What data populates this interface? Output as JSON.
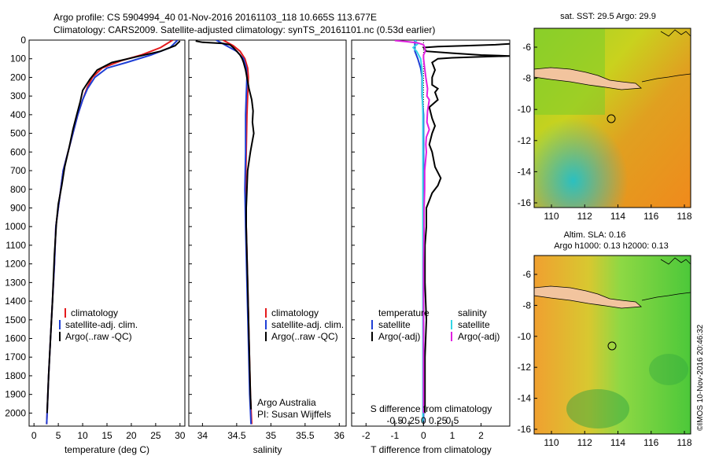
{
  "title_line1": "Argo profile: CS 5904994_40 01-Nov-2016 20161103_118 10.665S 113.677E",
  "title_line2": "Climatology: CARS2009. Satellite-adjusted climatology: synTS_20161101.nc (0.53d earlier)",
  "colors": {
    "climatology": "#e41a1c",
    "satellite": "#1f3fd6",
    "argo": "#000000",
    "sat_salinity": "#33d6e6",
    "argo_salinity": "#e020e0",
    "land": "#f2c49e"
  },
  "chart_data": [
    {
      "id": "temperature",
      "type": "line",
      "xlabel": "temperature (deg C)",
      "ylabel": "",
      "xlim": [
        -1,
        31
      ],
      "ylim": [
        2070,
        0
      ],
      "xticks": [
        0,
        5,
        10,
        15,
        20,
        25,
        30
      ],
      "xtick_labels": [
        "0",
        "5",
        "10",
        "15",
        "20",
        "25",
        "30"
      ],
      "yticks": [
        0,
        100,
        200,
        300,
        400,
        500,
        600,
        700,
        800,
        900,
        1000,
        1100,
        1200,
        1300,
        1400,
        1500,
        1600,
        1700,
        1800,
        1900,
        2000
      ],
      "ytick_labels": [
        "0",
        "100",
        "200",
        "300",
        "400",
        "500",
        "600",
        "700",
        "800",
        "900",
        "1000",
        "1100",
        "1200",
        "1300",
        "1400",
        "1500",
        "1600",
        "1700",
        "1800",
        "1900",
        "2000"
      ],
      "legend": [
        "climatology",
        "satellite-adj. clim.",
        "Argo(..raw -QC)"
      ],
      "series": [
        {
          "name": "climatology",
          "color": "#e41a1c",
          "points": [
            [
              28.5,
              0
            ],
            [
              26,
              40
            ],
            [
              22,
              80
            ],
            [
              18,
              110
            ],
            [
              14,
              150
            ],
            [
              12,
              200
            ],
            [
              11,
              250
            ],
            [
              10,
              320
            ],
            [
              9,
              400
            ],
            [
              8,
              500
            ],
            [
              7,
              600
            ],
            [
              6,
              700
            ],
            [
              5.5,
              800
            ],
            [
              5,
              900
            ],
            [
              4.5,
              1000
            ],
            [
              4.2,
              1200
            ],
            [
              3.8,
              1400
            ],
            [
              3.4,
              1600
            ],
            [
              3,
              1800
            ],
            [
              2.7,
              2000
            ],
            [
              2.6,
              2060
            ]
          ]
        },
        {
          "name": "satellite-adj. clim.",
          "color": "#1f3fd6",
          "points": [
            [
              29.5,
              0
            ],
            [
              28,
              40
            ],
            [
              24,
              80
            ],
            [
              19,
              120
            ],
            [
              15,
              150
            ],
            [
              12.5,
              200
            ],
            [
              11,
              260
            ],
            [
              10,
              320
            ],
            [
              9,
              400
            ],
            [
              8,
              500
            ],
            [
              7,
              600
            ],
            [
              6,
              700
            ],
            [
              5.5,
              800
            ],
            [
              5,
              900
            ],
            [
              4.5,
              1000
            ],
            [
              4.2,
              1200
            ],
            [
              3.8,
              1400
            ],
            [
              3.4,
              1600
            ],
            [
              3,
              1800
            ],
            [
              2.7,
              2000
            ],
            [
              2.6,
              2060
            ]
          ]
        },
        {
          "name": "Argo(..raw -QC)",
          "color": "#000000",
          "points": [
            [
              30,
              5
            ],
            [
              29,
              30
            ],
            [
              26,
              60
            ],
            [
              21,
              90
            ],
            [
              16,
              120
            ],
            [
              13,
              160
            ],
            [
              11.5,
              210
            ],
            [
              10,
              270
            ],
            [
              9.5,
              330
            ],
            [
              8.8,
              400
            ],
            [
              8,
              480
            ],
            [
              7.2,
              580
            ],
            [
              6.3,
              680
            ],
            [
              5.7,
              780
            ],
            [
              5,
              880
            ],
            [
              4.6,
              980
            ],
            [
              4.2,
              1150
            ],
            [
              3.8,
              1400
            ],
            [
              3.4,
              1600
            ],
            [
              3,
              1800
            ],
            [
              2.7,
              2000
            ]
          ]
        }
      ]
    },
    {
      "id": "salinity",
      "type": "line",
      "xlabel": "salinity",
      "xlim": [
        33.8,
        36.1
      ],
      "ylim": [
        2070,
        0
      ],
      "xticks": [
        34,
        34.5,
        35,
        35.5,
        36
      ],
      "xtick_labels": [
        "34",
        "34.5",
        "35",
        "35.5",
        "36"
      ],
      "legend": [
        "climatology",
        "satellite-adj. clim.",
        "Argo(..raw -QC)"
      ],
      "annotations": [
        "Argo Australia",
        "PI: Susan Wijffels"
      ],
      "series": [
        {
          "name": "climatology",
          "color": "#e41a1c",
          "points": [
            [
              34.3,
              0
            ],
            [
              34.45,
              30
            ],
            [
              34.55,
              60
            ],
            [
              34.62,
              100
            ],
            [
              34.66,
              150
            ],
            [
              34.67,
              200
            ],
            [
              34.66,
              300
            ],
            [
              34.65,
              400
            ],
            [
              34.64,
              600
            ],
            [
              34.63,
              800
            ],
            [
              34.64,
              1000
            ],
            [
              34.66,
              1300
            ],
            [
              34.68,
              1600
            ],
            [
              34.7,
              1900
            ],
            [
              34.72,
              2060
            ]
          ]
        },
        {
          "name": "satellite-adj. clim.",
          "color": "#1f3fd6",
          "points": [
            [
              34.2,
              0
            ],
            [
              34.35,
              30
            ],
            [
              34.5,
              60
            ],
            [
              34.6,
              100
            ],
            [
              34.64,
              150
            ],
            [
              34.65,
              200
            ],
            [
              34.64,
              300
            ],
            [
              34.63,
              400
            ],
            [
              34.63,
              600
            ],
            [
              34.62,
              800
            ],
            [
              34.63,
              1000
            ],
            [
              34.65,
              1300
            ],
            [
              34.67,
              1600
            ],
            [
              34.69,
              1900
            ],
            [
              34.71,
              2060
            ]
          ]
        },
        {
          "name": "Argo(..raw -QC)",
          "color": "#000000",
          "points": [
            [
              33.9,
              5
            ],
            [
              34.0,
              12
            ],
            [
              34.3,
              18
            ],
            [
              34.4,
              25
            ],
            [
              34.45,
              40
            ],
            [
              34.5,
              60
            ],
            [
              34.55,
              80
            ],
            [
              34.58,
              100
            ],
            [
              34.6,
              120
            ],
            [
              34.63,
              160
            ],
            [
              34.65,
              200
            ],
            [
              34.68,
              260
            ],
            [
              34.72,
              320
            ],
            [
              34.74,
              380
            ],
            [
              34.73,
              440
            ],
            [
              34.75,
              500
            ],
            [
              34.72,
              560
            ],
            [
              34.7,
              600
            ],
            [
              34.66,
              700
            ],
            [
              34.65,
              800
            ],
            [
              34.64,
              900
            ],
            [
              34.64,
              1000
            ],
            [
              34.66,
              1300
            ],
            [
              34.68,
              1600
            ],
            [
              34.7,
              1900
            ],
            [
              34.71,
              1980
            ]
          ]
        }
      ]
    },
    {
      "id": "differences",
      "type": "line",
      "xlabel": "T difference from climatology",
      "top_axis_label": "S difference from climatology",
      "xlim": [
        -2.5,
        3
      ],
      "ylim": [
        2070,
        0
      ],
      "xticks": [
        -2,
        -1,
        0,
        1,
        2
      ],
      "xtick_labels": [
        "-2",
        "-1",
        "0",
        "1",
        "2"
      ],
      "s_ticks": [
        -0.5,
        -0.25,
        0,
        0.25,
        0.5
      ],
      "s_tick_labels": [
        "-0.5",
        "-0.25",
        "0",
        "0.25",
        "0.5"
      ],
      "legend_left_title": "temperature",
      "legend_left": [
        "satellite",
        "Argo(-adj)"
      ],
      "legend_right_title": "salinity",
      "legend_right": [
        "satellite",
        "Argo(-adj)"
      ],
      "series": [
        {
          "name": "T satellite",
          "color": "#1f3fd6",
          "points": [
            [
              -0.3,
              0
            ],
            [
              -0.3,
              60
            ],
            [
              -0.2,
              100
            ],
            [
              -0.1,
              150
            ],
            [
              -0.05,
              200
            ],
            [
              -0.05,
              300
            ],
            [
              0,
              400
            ],
            [
              0,
              600
            ],
            [
              0,
              800
            ],
            [
              0,
              1000
            ],
            [
              0,
              1200
            ],
            [
              0,
              1400
            ],
            [
              0,
              1600
            ],
            [
              0,
              1800
            ],
            [
              0,
              2000
            ],
            [
              0,
              2050
            ]
          ]
        },
        {
          "name": "T Argo(-adj)",
          "color": "#000000",
          "points": [
            [
              3,
              20
            ],
            [
              2.5,
              25
            ],
            [
              1.5,
              30
            ],
            [
              0.5,
              35
            ],
            [
              0,
              40
            ],
            [
              0.1,
              60
            ],
            [
              1,
              70
            ],
            [
              2,
              80
            ],
            [
              3,
              85
            ],
            [
              2,
              90
            ],
            [
              1,
              95
            ],
            [
              0.5,
              100
            ],
            [
              0.3,
              120
            ],
            [
              0.4,
              160
            ],
            [
              0.3,
              200
            ],
            [
              0.3,
              240
            ],
            [
              0.5,
              260
            ],
            [
              0.4,
              280
            ],
            [
              0.5,
              320
            ],
            [
              0.2,
              360
            ],
            [
              0.3,
              420
            ],
            [
              0.4,
              460
            ],
            [
              0.3,
              500
            ],
            [
              0.2,
              560
            ],
            [
              0.3,
              600
            ],
            [
              0.4,
              680
            ],
            [
              0.6,
              740
            ],
            [
              0.5,
              780
            ],
            [
              0.3,
              820
            ],
            [
              0.2,
              860
            ],
            [
              0.1,
              900
            ],
            [
              0.1,
              1000
            ],
            [
              0.05,
              1100
            ],
            [
              0.05,
              1300
            ],
            [
              0.1,
              1500
            ],
            [
              0.05,
              1700
            ],
            [
              0.05,
              1900
            ],
            [
              0.05,
              2000
            ]
          ]
        },
        {
          "name": "S satellite",
          "color": "#33d6e6",
          "points": [
            [
              -0.15,
              0
            ],
            [
              -0.1,
              20
            ],
            [
              -0.18,
              40
            ],
            [
              -0.12,
              60
            ],
            [
              -0.05,
              100
            ],
            [
              -0.03,
              150
            ],
            [
              -0.02,
              200
            ],
            [
              -0.02,
              300
            ],
            [
              -0.01,
              400
            ],
            [
              -0.01,
              600
            ],
            [
              -0.01,
              800
            ],
            [
              -0.01,
              1000
            ],
            [
              -0.01,
              1300
            ],
            [
              -0.01,
              1600
            ],
            [
              -0.01,
              1900
            ],
            [
              -0.01,
              2050
            ]
          ]
        },
        {
          "name": "S Argo(-adj)",
          "color": "#e020e0",
          "points": [
            [
              -0.5,
              2
            ],
            [
              -0.3,
              8
            ],
            [
              -0.1,
              15
            ],
            [
              0.0,
              25
            ],
            [
              0.02,
              40
            ],
            [
              0.03,
              60
            ],
            [
              0.0,
              80
            ],
            [
              0.0,
              100
            ],
            [
              0.02,
              150
            ],
            [
              0.04,
              200
            ],
            [
              0.07,
              260
            ],
            [
              0.06,
              300
            ],
            [
              0.1,
              320
            ],
            [
              0.07,
              380
            ],
            [
              0.06,
              440
            ],
            [
              0.1,
              480
            ],
            [
              0.05,
              520
            ],
            [
              0.04,
              560
            ],
            [
              0.05,
              600
            ],
            [
              0.02,
              700
            ],
            [
              0.02,
              800
            ],
            [
              0.01,
              900
            ],
            [
              0.01,
              1000
            ],
            [
              0.0,
              1200
            ],
            [
              0.0,
              1500
            ],
            [
              0.0,
              1800
            ],
            [
              0.0,
              2000
            ]
          ]
        }
      ]
    }
  ],
  "maps": [
    {
      "id": "sst-map",
      "title": "sat. SST: 29.5 Argo: 29.9",
      "title_line2": "",
      "xticks": [
        "110",
        "112",
        "114",
        "116",
        "118"
      ],
      "yticks": [
        "-6",
        "-8",
        "-10",
        "-12",
        "-14",
        "-16"
      ]
    },
    {
      "id": "sla-map",
      "title": "Altim. SLA: 0.16",
      "title_line2": "Argo h1000: 0.13 h2000: 0.13",
      "xticks": [
        "110",
        "112",
        "114",
        "116",
        "118"
      ],
      "yticks": [
        "-6",
        "-8",
        "-10",
        "-12",
        "-14",
        "-16"
      ]
    }
  ],
  "credit": "©IMOS 10-Nov-2016 20:46:32"
}
